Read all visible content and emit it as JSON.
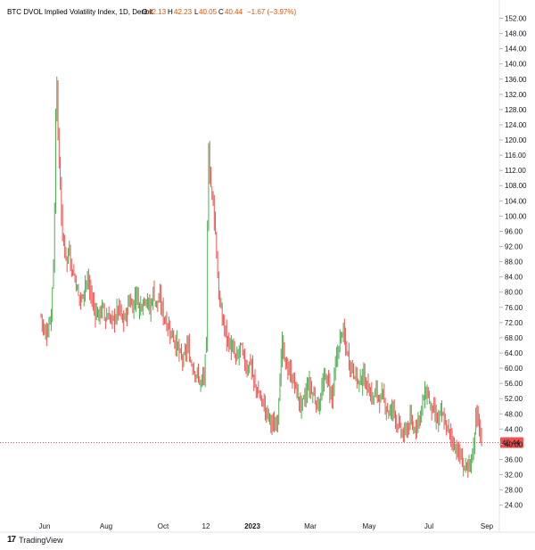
{
  "chart_data": {
    "type": "candlestick",
    "title": "BTC DVOL Implied Volatility Index, 1D, Deribit",
    "ohlc_label": {
      "O": "42.13",
      "H": "42.23",
      "L": "40.05",
      "C": "40.44",
      "change": "−1.67 (−3.97%)"
    },
    "last_price_label": "40.44",
    "ylim": [
      20,
      154
    ],
    "y_ticks": [
      "152.00",
      "148.00",
      "144.00",
      "140.00",
      "136.00",
      "132.00",
      "128.00",
      "124.00",
      "120.00",
      "116.00",
      "112.00",
      "108.00",
      "104.00",
      "100.00",
      "96.00",
      "92.00",
      "88.00",
      "84.00",
      "80.00",
      "76.00",
      "72.00",
      "68.00",
      "64.00",
      "60.00",
      "56.00",
      "52.00",
      "48.00",
      "44.00",
      "40.00",
      "36.00",
      "32.00",
      "28.00",
      "24.00"
    ],
    "x_ticks": [
      "Jun",
      "Aug",
      "Oct",
      "12",
      "2023",
      "Mar",
      "May",
      "Jul",
      "Sep"
    ],
    "series": [
      {
        "values": [
          [
            0,
            74
          ],
          [
            3,
            69
          ],
          [
            6,
            70
          ],
          [
            9,
            75
          ],
          [
            11,
            88
          ],
          [
            12,
            101
          ],
          [
            13,
            128
          ],
          [
            14,
            136
          ],
          [
            15,
            120
          ],
          [
            17,
            108
          ],
          [
            19,
            94
          ],
          [
            21,
            92
          ],
          [
            23,
            88
          ],
          [
            25,
            92
          ],
          [
            27,
            86
          ],
          [
            30,
            84
          ],
          [
            33,
            79
          ],
          [
            36,
            78
          ],
          [
            39,
            83
          ],
          [
            42,
            82
          ],
          [
            45,
            78
          ],
          [
            48,
            75
          ],
          [
            51,
            74
          ],
          [
            54,
            76
          ],
          [
            57,
            73
          ],
          [
            60,
            74
          ],
          [
            63,
            72
          ],
          [
            66,
            74
          ],
          [
            69,
            76
          ],
          [
            72,
            72
          ],
          [
            75,
            74
          ],
          [
            78,
            78
          ],
          [
            81,
            76
          ],
          [
            84,
            80
          ],
          [
            87,
            76
          ],
          [
            90,
            78
          ],
          [
            93,
            79
          ],
          [
            96,
            75
          ],
          [
            99,
            80
          ],
          [
            102,
            77
          ],
          [
            105,
            78
          ],
          [
            108,
            74
          ],
          [
            111,
            72
          ],
          [
            114,
            70
          ],
          [
            117,
            68
          ],
          [
            120,
            66
          ],
          [
            123,
            63
          ],
          [
            126,
            62
          ],
          [
            129,
            66
          ],
          [
            132,
            62
          ],
          [
            135,
            60
          ],
          [
            138,
            58
          ],
          [
            141,
            56
          ],
          [
            144,
            58
          ],
          [
            146,
            66
          ],
          [
            147,
            96
          ],
          [
            148,
            118
          ],
          [
            149,
            112
          ],
          [
            150,
            108
          ],
          [
            152,
            104
          ],
          [
            154,
            96
          ],
          [
            156,
            84
          ],
          [
            158,
            76
          ],
          [
            161,
            72
          ],
          [
            164,
            68
          ],
          [
            167,
            66
          ],
          [
            170,
            64
          ],
          [
            173,
            62
          ],
          [
            176,
            66
          ],
          [
            179,
            62
          ],
          [
            182,
            60
          ],
          [
            185,
            62
          ],
          [
            188,
            56
          ],
          [
            191,
            54
          ],
          [
            194,
            52
          ],
          [
            197,
            50
          ],
          [
            200,
            48
          ],
          [
            203,
            46
          ],
          [
            206,
            44
          ],
          [
            209,
            48
          ],
          [
            211,
            58
          ],
          [
            213,
            66
          ],
          [
            215,
            62
          ],
          [
            218,
            60
          ],
          [
            221,
            58
          ],
          [
            224,
            56
          ],
          [
            227,
            52
          ],
          [
            230,
            50
          ],
          [
            233,
            52
          ],
          [
            236,
            56
          ],
          [
            239,
            54
          ],
          [
            242,
            52
          ],
          [
            245,
            50
          ],
          [
            248,
            54
          ],
          [
            251,
            58
          ],
          [
            254,
            56
          ],
          [
            257,
            52
          ],
          [
            260,
            60
          ],
          [
            263,
            66
          ],
          [
            266,
            70
          ],
          [
            269,
            66
          ],
          [
            272,
            62
          ],
          [
            275,
            60
          ],
          [
            278,
            58
          ],
          [
            281,
            56
          ],
          [
            284,
            58
          ],
          [
            287,
            56
          ],
          [
            290,
            54
          ],
          [
            293,
            52
          ],
          [
            296,
            54
          ],
          [
            299,
            52
          ],
          [
            302,
            52
          ],
          [
            305,
            50
          ],
          [
            308,
            48
          ],
          [
            311,
            50
          ],
          [
            314,
            46
          ],
          [
            317,
            44
          ],
          [
            320,
            42
          ],
          [
            323,
            44
          ],
          [
            326,
            46
          ],
          [
            329,
            44
          ],
          [
            332,
            46
          ],
          [
            335,
            48
          ],
          [
            338,
            52
          ],
          [
            341,
            54
          ],
          [
            344,
            50
          ],
          [
            347,
            48
          ],
          [
            350,
            46
          ],
          [
            353,
            48
          ],
          [
            356,
            46
          ],
          [
            359,
            44
          ],
          [
            362,
            42
          ],
          [
            365,
            40
          ],
          [
            368,
            38
          ],
          [
            371,
            36
          ],
          [
            374,
            34
          ],
          [
            377,
            33
          ],
          [
            380,
            36
          ],
          [
            383,
            42
          ],
          [
            384,
            50
          ],
          [
            386,
            46
          ],
          [
            388,
            43
          ],
          [
            389,
            40.44
          ]
        ]
      }
    ]
  },
  "branding": {
    "logo": "17",
    "name": "TradingView"
  },
  "colors": {
    "up": "#26a69a",
    "up_candle": "#4caf50",
    "down": "#ef5350",
    "last_line": "#ef5350",
    "header_value": "#e65100",
    "grid": "#f0f3fa"
  }
}
